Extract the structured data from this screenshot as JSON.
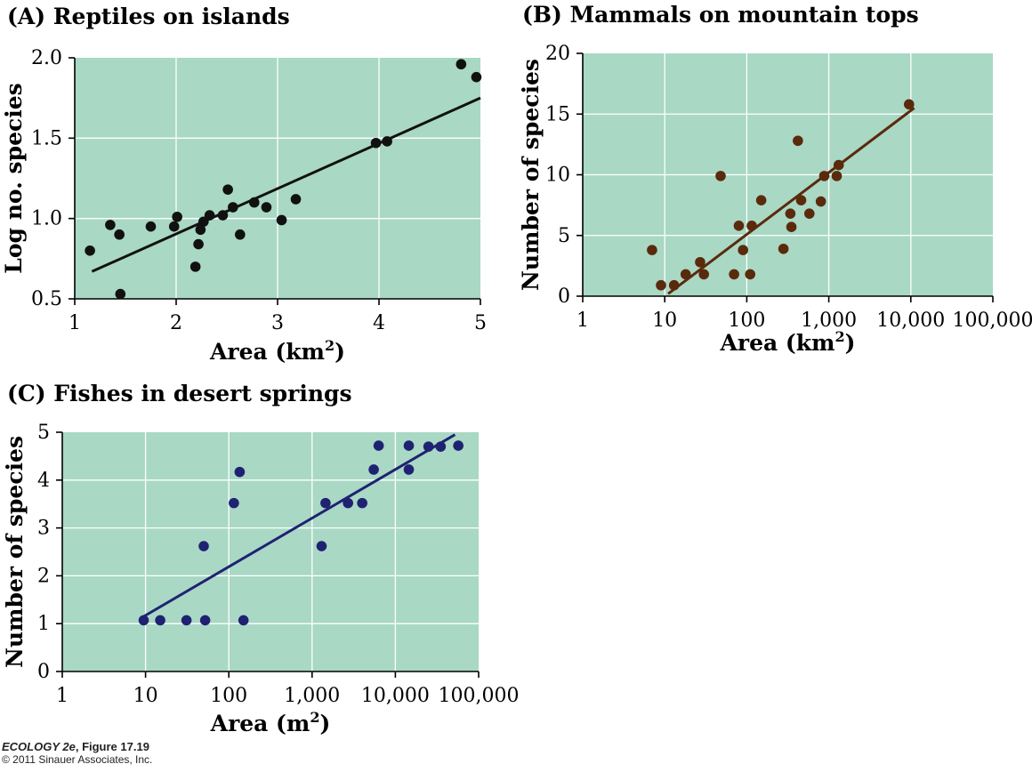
{
  "colors": {
    "plot_bg": "#a9d8c4",
    "grid": "#ffffff",
    "axis": "#000000",
    "panel_a_series": "#111111",
    "panel_b_series": "#5a2a0c",
    "panel_c_series": "#1f2272"
  },
  "chart_data": [
    {
      "type": "scatter",
      "title": "(A)  Reptiles on islands",
      "xlabel": "Area (km",
      "xlabel_sup": "2",
      "xlabel_close": ")",
      "ylabel": "Log no. species",
      "xscale": "linear",
      "xlim": [
        1,
        5
      ],
      "ylim": [
        0.5,
        2.0
      ],
      "xticks": [
        1,
        2,
        3,
        4,
        5
      ],
      "xtick_labels": [
        "1",
        "2",
        "3",
        "4",
        "5"
      ],
      "yticks": [
        0.5,
        1.0,
        1.5,
        2.0
      ],
      "ytick_labels": [
        "0.5",
        "1.0",
        "1.5",
        "2.0"
      ],
      "grid": true,
      "points": [
        [
          1.15,
          0.8
        ],
        [
          1.35,
          0.96
        ],
        [
          1.44,
          0.9
        ],
        [
          1.45,
          0.53
        ],
        [
          1.75,
          0.95
        ],
        [
          1.98,
          0.95
        ],
        [
          2.01,
          1.01
        ],
        [
          2.19,
          0.7
        ],
        [
          2.22,
          0.84
        ],
        [
          2.24,
          0.93
        ],
        [
          2.27,
          0.98
        ],
        [
          2.33,
          1.02
        ],
        [
          2.46,
          1.02
        ],
        [
          2.51,
          1.18
        ],
        [
          2.56,
          1.07
        ],
        [
          2.63,
          0.9
        ],
        [
          2.77,
          1.1
        ],
        [
          2.89,
          1.07
        ],
        [
          3.04,
          0.99
        ],
        [
          3.18,
          1.12
        ],
        [
          3.97,
          1.47
        ],
        [
          4.08,
          1.48
        ],
        [
          4.81,
          1.96
        ],
        [
          4.96,
          1.88
        ]
      ],
      "fit_line": [
        [
          1.17,
          0.67
        ],
        [
          5.0,
          1.75
        ]
      ]
    },
    {
      "type": "scatter",
      "title": "(B)  Mammals on mountain tops",
      "xlabel": "Area (km",
      "xlabel_sup": "2",
      "xlabel_close": ")",
      "ylabel": "Number of species",
      "xscale": "log",
      "xlim": [
        1,
        100000
      ],
      "ylim": [
        0,
        20
      ],
      "xticks": [
        1,
        10,
        100,
        1000,
        10000,
        100000
      ],
      "xtick_labels": [
        "1",
        "10",
        "100",
        "1,000",
        "10,000",
        "100,000"
      ],
      "yticks": [
        0,
        5,
        10,
        15,
        20
      ],
      "ytick_labels": [
        "0",
        "5",
        "10",
        "15",
        "20"
      ],
      "grid": true,
      "points": [
        [
          7,
          3.8
        ],
        [
          9,
          0.9
        ],
        [
          13,
          0.9
        ],
        [
          18,
          1.8
        ],
        [
          27,
          2.8
        ],
        [
          30,
          1.8
        ],
        [
          48,
          9.9
        ],
        [
          70,
          1.8
        ],
        [
          80,
          5.8
        ],
        [
          90,
          3.8
        ],
        [
          110,
          1.8
        ],
        [
          115,
          5.8
        ],
        [
          150,
          7.9
        ],
        [
          280,
          3.9
        ],
        [
          340,
          6.8
        ],
        [
          350,
          5.7
        ],
        [
          420,
          12.8
        ],
        [
          460,
          7.9
        ],
        [
          580,
          6.8
        ],
        [
          800,
          7.8
        ],
        [
          880,
          9.9
        ],
        [
          1250,
          9.9
        ],
        [
          1320,
          10.8
        ],
        [
          9500,
          15.8
        ]
      ],
      "fit_line": [
        [
          11,
          0.2
        ],
        [
          11000,
          15.5
        ]
      ]
    },
    {
      "type": "scatter",
      "title": "(C)  Fishes in desert springs",
      "xlabel": "Area (m",
      "xlabel_sup": "2",
      "xlabel_close": ")",
      "ylabel": "Number of species",
      "xscale": "log",
      "xlim": [
        1,
        100000
      ],
      "ylim": [
        0,
        5
      ],
      "xticks": [
        1,
        10,
        100,
        1000,
        10000,
        100000
      ],
      "xtick_labels": [
        "1",
        "10",
        "100",
        "1,000",
        "10,000",
        "100,000"
      ],
      "yticks": [
        0,
        1,
        2,
        3,
        4,
        5
      ],
      "ytick_labels": [
        "0",
        "1",
        "2",
        "3",
        "4",
        "5"
      ],
      "grid": true,
      "points": [
        [
          9.5,
          1.07
        ],
        [
          15,
          1.07
        ],
        [
          31,
          1.07
        ],
        [
          52,
          1.07
        ],
        [
          50,
          2.62
        ],
        [
          115,
          3.52
        ],
        [
          135,
          4.17
        ],
        [
          150,
          1.07
        ],
        [
          1300,
          2.62
        ],
        [
          1450,
          3.52
        ],
        [
          2700,
          3.52
        ],
        [
          4000,
          3.52
        ],
        [
          5500,
          4.22
        ],
        [
          6300,
          4.72
        ],
        [
          14500,
          4.22
        ],
        [
          14500,
          4.72
        ],
        [
          25000,
          4.7
        ],
        [
          35000,
          4.7
        ],
        [
          57000,
          4.72
        ]
      ],
      "fit_line": [
        [
          9.5,
          1.15
        ],
        [
          52000,
          4.95
        ]
      ]
    }
  ],
  "footer": {
    "book": "ECOLOGY 2e",
    "figure": ", Figure 17.19",
    "copyright": "© 2011 Sinauer Associates, Inc."
  }
}
